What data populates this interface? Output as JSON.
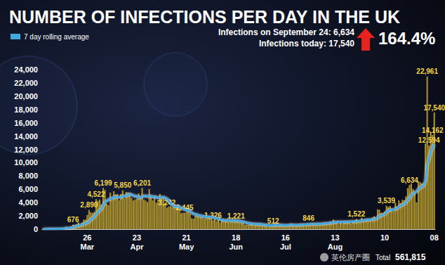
{
  "chart_data": {
    "type": "bar",
    "title": "NUMBER OF INFECTIONS PER DAY IN THE UK",
    "categories": [
      null,
      null,
      null,
      null,
      null,
      null,
      null,
      null,
      null,
      null,
      null,
      null,
      null,
      null,
      null,
      null,
      null,
      null,
      null,
      null,
      null,
      null,
      null,
      null,
      null,
      "26 Mar",
      null,
      null,
      null,
      null,
      null,
      null,
      null,
      null,
      null,
      null,
      null,
      null,
      null,
      null,
      null,
      null,
      null,
      null,
      null,
      null,
      null,
      null,
      null,
      null,
      null,
      null,
      null,
      "23 Apr",
      null,
      null,
      null,
      null,
      null,
      null,
      null,
      null,
      null,
      null,
      null,
      null,
      null,
      null,
      null,
      null,
      null,
      null,
      null,
      null,
      null,
      null,
      null,
      null,
      null,
      null,
      null,
      "21 May",
      null,
      null,
      null,
      null,
      null,
      null,
      null,
      null,
      null,
      null,
      null,
      null,
      null,
      null,
      null,
      null,
      null,
      null,
      null,
      null,
      null,
      null,
      null,
      null,
      null,
      null,
      null,
      "18 Jun",
      null,
      null,
      null,
      null,
      null,
      null,
      null,
      null,
      null,
      null,
      null,
      null,
      null,
      null,
      null,
      null,
      null,
      null,
      null,
      null,
      null,
      null,
      null,
      null,
      null,
      null,
      null,
      "16 Jul",
      null,
      null,
      null,
      null,
      null,
      null,
      null,
      null,
      null,
      null,
      null,
      null,
      null,
      null,
      null,
      null,
      null,
      null,
      null,
      null,
      null,
      null,
      null,
      null,
      null,
      null,
      null,
      "13 Aug",
      null,
      null,
      null,
      null,
      null,
      null,
      null,
      null,
      null,
      null,
      null,
      null,
      null,
      null,
      null,
      null,
      null,
      null,
      null,
      null,
      null,
      null,
      null,
      null,
      null,
      null,
      null,
      "10",
      null,
      null,
      null,
      null,
      null,
      null,
      null,
      null,
      null,
      null,
      null,
      null,
      null,
      null,
      null,
      null,
      null,
      null,
      null,
      null,
      null,
      null,
      null,
      null,
      null,
      null,
      null,
      "08"
    ],
    "series": [
      {
        "type": "bar",
        "color": "#a88f2e",
        "values": [
          12,
          4,
          11,
          34,
          30,
          48,
          43,
          67,
          48,
          61,
          52,
          134,
          208,
          342,
          251,
          152,
          407,
          676,
          643,
          714,
          1035,
          665,
          967,
          1427,
          1452,
          2129,
          2890,
          2546,
          2433,
          2619,
          4522,
          4244,
          4450,
          3735,
          6199,
          5903,
          3802,
          3634,
          5491,
          4344,
          5706,
          5234,
          5288,
          4342,
          5252,
          5850,
          4617,
          5599,
          5525,
          5458,
          4676,
          4301,
          4451,
          4583,
          5386,
          4913,
          6201,
          4463,
          4310,
          4076,
          6032,
          4806,
          4339,
          4805,
          3985,
          4406,
          5294,
          4914,
          4649,
          3896,
          3242,
          3403,
          3446,
          3287,
          3560,
          3450,
          3534,
          3142,
          2412,
          2472,
          2445,
          2615,
          2959,
          2409,
          1625,
          1570,
          2004,
          2013,
          1887,
          1805,
          1936,
          1570,
          1653,
          1871,
          1805,
          1650,
          1326,
          1557,
          1205,
          1387,
          1003,
          1266,
          1541,
          1425,
          1514,
          1056,
          1279,
          1115,
          1218,
          1221,
          1295,
          1022,
          958,
          921,
          655,
          670,
          652,
          814,
          1006,
          901,
          815,
          689,
          829,
          576,
          544,
          624,
          516,
          352,
          581,
          630,
          512,
          820,
          642,
          650,
          530,
          580,
          538,
          463,
          642,
          687,
          827,
          580,
          594,
          445,
          560,
          769,
          767,
          688,
          744,
          685,
          846,
          763,
          880,
          743,
          744,
          758,
          938,
          670,
          950,
          871,
          758,
          1062,
          1148,
          1009,
          1441,
          1012,
          1040,
          713,
          1089,
          812,
          1182,
          1033,
          1288,
          1041,
          853,
          1184,
          1048,
          1522,
          1276,
          1108,
          1715,
          1406,
          1276,
          1508,
          1295,
          1508,
          1735,
          1940,
          1813,
          2988,
          2948,
          2460,
          2420,
          2659,
          3539,
          3330,
          3497,
          3105,
          2621,
          3991,
          3395,
          4322,
          3929,
          4422,
          4368,
          4926,
          6178,
          6634,
          6874,
          6042,
          5693,
          4044,
          7143,
          7108,
          6914,
          6968,
          12872,
          22961,
          12594,
          14542,
          14162,
          17540
        ],
        "value_labels": [
          null,
          null,
          null,
          null,
          null,
          null,
          null,
          null,
          null,
          null,
          null,
          null,
          null,
          null,
          null,
          null,
          null,
          "676",
          null,
          null,
          null,
          null,
          null,
          null,
          null,
          null,
          "2,890",
          null,
          null,
          null,
          "4,522",
          null,
          null,
          null,
          "6,199",
          null,
          null,
          null,
          null,
          null,
          null,
          null,
          null,
          null,
          null,
          "5,850",
          null,
          null,
          null,
          null,
          null,
          null,
          null,
          null,
          null,
          null,
          "6,201",
          null,
          null,
          null,
          null,
          null,
          null,
          null,
          null,
          null,
          null,
          null,
          null,
          null,
          "3,242",
          null,
          null,
          null,
          null,
          null,
          null,
          null,
          null,
          null,
          "2,445",
          null,
          null,
          null,
          null,
          null,
          null,
          null,
          null,
          null,
          null,
          null,
          null,
          null,
          null,
          null,
          "1,326",
          null,
          null,
          null,
          null,
          null,
          null,
          null,
          null,
          null,
          null,
          null,
          null,
          "1,221",
          null,
          null,
          null,
          null,
          null,
          null,
          null,
          null,
          null,
          null,
          null,
          null,
          null,
          null,
          null,
          null,
          null,
          null,
          null,
          null,
          "512",
          null,
          null,
          null,
          null,
          null,
          null,
          null,
          null,
          null,
          null,
          null,
          null,
          null,
          null,
          null,
          null,
          null,
          null,
          null,
          "846",
          null,
          null,
          null,
          null,
          null,
          null,
          null,
          null,
          null,
          null,
          null,
          null,
          null,
          null,
          null,
          null,
          null,
          null,
          null,
          null,
          null,
          null,
          null,
          null,
          null,
          null,
          "1,522",
          null,
          null,
          null,
          null,
          null,
          null,
          null,
          null,
          null,
          null,
          null,
          null,
          null,
          null,
          null,
          null,
          "3,539",
          null,
          null,
          null,
          null,
          null,
          null,
          null,
          null,
          null,
          null,
          null,
          null,
          "6,634",
          null,
          null,
          null,
          null,
          null,
          null,
          null,
          null,
          null,
          "22,961",
          "12,594",
          null,
          "14,162",
          "17,540"
        ]
      },
      {
        "name": "7 day rolling average",
        "type": "line",
        "color": "#3fa9e0",
        "values": [
          8,
          10,
          12,
          16,
          19,
          24,
          28,
          35,
          40,
          47,
          52,
          65,
          90,
          123,
          149,
          167,
          215,
          298,
          373,
          445,
          525,
          598,
          675,
          762,
          878,
          968,
          1163,
          1430,
          1643,
          1850,
          2237,
          2536,
          2809,
          3038,
          3574,
          4049,
          4226,
          4385,
          4609,
          4553,
          4852,
          4778,
          4847,
          4812,
          4768,
          4994,
          4976,
          4988,
          5103,
          5285,
          5199,
          5046,
          4962,
          4934,
          4761,
          4707,
          4931,
          4999,
          4977,
          4900,
          5010,
          4963,
          4836,
          4892,
          4807,
          4724,
          4758,
          4806,
          4823,
          4695,
          4555,
          4363,
          3955,
          3652,
          3457,
          3418,
          3403,
          3387,
          3226,
          3076,
          2948,
          2907,
          2831,
          2714,
          2469,
          2314,
          2228,
          2188,
          2039,
          1999,
          1948,
          1884,
          1871,
          1842,
          1831,
          1811,
          1778,
          1717,
          1652,
          1559,
          1458,
          1385,
          1347,
          1312,
          1329,
          1303,
          1314,
          1293,
          1283,
          1269,
          1276,
          1219,
          1170,
          1113,
          1028,
          960,
          901,
          852,
          810,
          783,
          771,
          761,
          752,
          744,
          697,
          663,
          630,
          577,
          573,
          583,
          581,
          608,
          620,
          628,
          621,
          616,
          586,
          585,
          594,
          609,
          624,
          628,
          617,
          614,
          609,
          626,
          653,
          668,
          686,
          703,
          727,
          738,
          757,
          755,
          756,
          770,
          800,
          790,
          819,
          845,
          848,
          891,
          920,
          960,
          1040,
          1050,
          1056,
          1078,
          1066,
          1083,
          1074,
          1080,
          1104,
          1097,
          1124,
          1134,
          1149,
          1170,
          1185,
          1221,
          1286,
          1327,
          1336,
          1419,
          1404,
          1418,
          1460,
          1502,
          1548,
          1727,
          1933,
          2046,
          2144,
          2272,
          2567,
          2756,
          2901,
          2931,
          2888,
          3079,
          3125,
          3365,
          3493,
          3668,
          3766,
          3994,
          4353,
          4690,
          5107,
          5341,
          5519,
          5654,
          6031,
          6253,
          6415,
          6466,
          7309,
          9639,
          10557,
          11686,
          12282,
          12776
        ]
      }
    ],
    "ylim": [
      0,
      24000
    ],
    "yticks": [
      0,
      {
        "value": 2000,
        "label": "2,000"
      },
      {
        "value": 4000,
        "label": "4,000"
      },
      {
        "value": 6000,
        "label": "6,000"
      },
      {
        "value": 8000,
        "label": "8,000"
      },
      {
        "value": 10000,
        "label": "10,000"
      },
      {
        "value": 12000,
        "label": "12,000"
      },
      {
        "value": 14000,
        "label": "14,000"
      },
      {
        "value": 16000,
        "label": "16,000"
      },
      {
        "value": 18000,
        "label": "18,000"
      },
      {
        "value": 20000,
        "label": "20,000"
      },
      {
        "value": 22000,
        "label": "22,000"
      },
      {
        "value": 24000,
        "label": "24,000"
      }
    ],
    "grid": false,
    "legend": "upper left",
    "annotations": [
      "Infections on September 24: 6,634",
      "Infections today: 17,540",
      "164.4%",
      "Total",
      "561,815",
      "英伦房产圈"
    ]
  }
}
